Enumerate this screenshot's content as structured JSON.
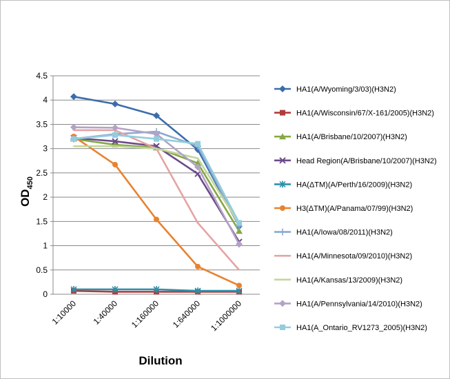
{
  "chart_data": {
    "type": "line",
    "title": "",
    "xlabel": "Dilution",
    "ylabel": "OD",
    "ylabel_subscript": "450",
    "ylim": [
      0,
      4.5
    ],
    "yticks": [
      "0",
      "0.5",
      "1",
      "1.5",
      "2",
      "2.5",
      "3",
      "3.5",
      "4",
      "4.5"
    ],
    "grid": "horizontal",
    "legend_position": "right",
    "categories": [
      "1:10000",
      "1:40000",
      "1:160000",
      "1:640000",
      "1:1000000"
    ],
    "series": [
      {
        "name": "HA1(A/Wyoming/3/03)(H3N2)",
        "color": "#3a6dac",
        "marker": "diamond",
        "values": [
          4.07,
          3.92,
          3.68,
          2.98,
          1.4
        ]
      },
      {
        "name": "HA1(A/Wisconsin/67/X-161/2005)(H3N2)",
        "color": "#b03c3a",
        "marker": "square",
        "values": [
          0.07,
          0.05,
          0.05,
          0.05,
          0.05
        ]
      },
      {
        "name": "HA1(A/Brisbane/10/2007)(H3N2)",
        "color": "#85a844",
        "marker": "triangle",
        "values": [
          3.2,
          3.08,
          3.02,
          2.7,
          1.3
        ]
      },
      {
        "name": "Head Region(A/Brisbane/10/2007)(H3N2)",
        "color": "#6b4a8a",
        "marker": "x",
        "values": [
          3.22,
          3.15,
          3.05,
          2.48,
          1.08
        ]
      },
      {
        "name": "HA(ΔTM)(A/Perth/16/2009)(H3N2)",
        "color": "#2e8fa8",
        "marker": "asterisk",
        "values": [
          0.1,
          0.1,
          0.1,
          0.07,
          0.07
        ]
      },
      {
        "name": "H3(ΔTM)(A/Panama/07/99)(H3N2)",
        "color": "#e8822e",
        "marker": "circle",
        "values": [
          3.25,
          2.67,
          1.54,
          0.57,
          0.18
        ]
      },
      {
        "name": "HA1(A/Iowa/08/2011)(H3N2)",
        "color": "#8aaad0",
        "marker": "plus",
        "values": [
          3.2,
          3.3,
          3.35,
          3.05,
          1.4
        ]
      },
      {
        "name": "HA1(A/Minnesota/09/2010)(H3N2)",
        "color": "#e5a3a3",
        "marker": "none",
        "values": [
          3.38,
          3.38,
          3.0,
          1.47,
          0.5
        ]
      },
      {
        "name": "HA1(A/Kansas/13/2009)(H3N2)",
        "color": "#c3d69b",
        "marker": "none",
        "values": [
          3.05,
          3.05,
          3.0,
          2.8,
          1.45
        ]
      },
      {
        "name": "HA1(A/Pennsylvania/14/2010)(H3N2)",
        "color": "#b3a2c7",
        "marker": "diamond",
        "values": [
          3.44,
          3.43,
          3.3,
          2.62,
          1.03
        ]
      },
      {
        "name": "HA1(A_Ontario_RV1273_2005)(H3N2)",
        "color": "#93cddd",
        "marker": "square",
        "values": [
          3.2,
          3.28,
          3.2,
          3.1,
          1.47
        ]
      }
    ]
  }
}
